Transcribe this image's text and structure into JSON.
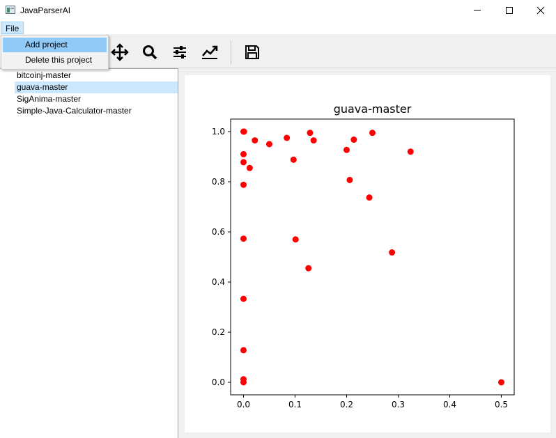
{
  "window": {
    "title": "JavaParserAI"
  },
  "menubar": {
    "file_label": "File"
  },
  "file_menu": {
    "items": [
      "Add project",
      "Delete this project"
    ]
  },
  "toolbar": {
    "tools": [
      "home-icon",
      "back-arrow-icon",
      "forward-arrow-icon",
      "pan-icon",
      "zoom-icon",
      "configure-subplots-icon",
      "edit-axes-icon",
      "save-icon"
    ]
  },
  "projects": {
    "items": [
      "bitcoinj-master",
      "guava-master",
      "SigAnima-master",
      "Simple-Java-Calculator-master"
    ],
    "selected": "guava-master"
  },
  "chart_data": {
    "type": "scatter",
    "title": "guava-master",
    "xlabel": "",
    "ylabel": "",
    "xlim": [
      -0.025,
      0.525
    ],
    "ylim": [
      -0.05,
      1.05
    ],
    "xticks": [
      "0.0",
      "0.1",
      "0.2",
      "0.3",
      "0.4",
      "0.5"
    ],
    "yticks": [
      "0.0",
      "0.2",
      "0.4",
      "0.6",
      "0.8",
      "1.0"
    ],
    "marker_color": "#ff0000",
    "grid": false,
    "points": [
      [
        0.0,
        1.0
      ],
      [
        0.001,
        1.0
      ],
      [
        0.0,
        0.91
      ],
      [
        0.0,
        0.878
      ],
      [
        0.012,
        0.855
      ],
      [
        0.0,
        0.788
      ],
      [
        0.0,
        0.573
      ],
      [
        0.0,
        0.333
      ],
      [
        0.0,
        0.128
      ],
      [
        0.0,
        0.012
      ],
      [
        0.0,
        0.0
      ],
      [
        0.022,
        0.965
      ],
      [
        0.05,
        0.95
      ],
      [
        0.084,
        0.975
      ],
      [
        0.097,
        0.888
      ],
      [
        0.101,
        0.57
      ],
      [
        0.126,
        0.455
      ],
      [
        0.129,
        0.995
      ],
      [
        0.136,
        0.965
      ],
      [
        0.2,
        0.927
      ],
      [
        0.206,
        0.807
      ],
      [
        0.214,
        0.968
      ],
      [
        0.244,
        0.737
      ],
      [
        0.25,
        0.995
      ],
      [
        0.288,
        0.518
      ],
      [
        0.324,
        0.92
      ],
      [
        0.5,
        0.0
      ]
    ]
  }
}
